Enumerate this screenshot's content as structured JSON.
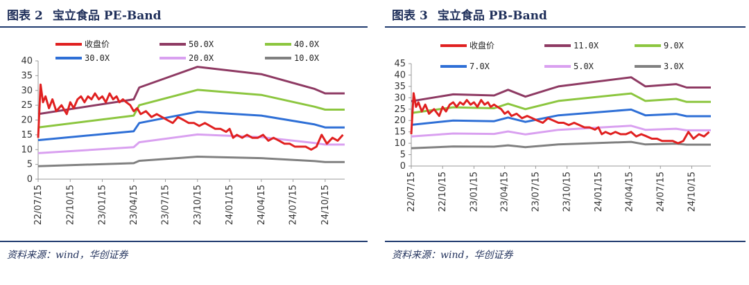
{
  "charts": [
    {
      "figure_label": "图表",
      "figure_number": "2",
      "title": "宝立食品 PE-Band",
      "source": "资料来源：wind，华创证券"
    },
    {
      "figure_label": "图表",
      "figure_number": "3",
      "title": "宝立食品 PB-Band",
      "source": "资料来源：wind，华创证券"
    }
  ],
  "chart_data": [
    {
      "type": "line",
      "title": "宝立食品 PE-Band",
      "ylim": [
        0,
        40
      ],
      "y_ticks": [
        0,
        5,
        10,
        15,
        20,
        25,
        30,
        35,
        40
      ],
      "x_ticks": [
        "22/07/15",
        "22/10/15",
        "23/01/15",
        "23/04/15",
        "23/07/15",
        "23/10/15",
        "24/01/15",
        "24/04/15",
        "24/07/15",
        "24/10/15"
      ],
      "xlim": [
        "2022-07-15",
        "2024-12-10"
      ],
      "grid": false,
      "legend": "top",
      "colors": {
        "收盘价": "#e02020",
        "50.0X": "#8e3a63",
        "40.0X": "#8cc63f",
        "30.0X": "#2e6fd6",
        "20.0X": "#d9a0f0",
        "10.0X": "#808080"
      },
      "series": [
        {
          "name": "收盘价",
          "x": [
            "2022-07-15",
            "2022-07-22",
            "2022-07-29",
            "2022-08-05",
            "2022-08-15",
            "2022-08-25",
            "2022-09-05",
            "2022-09-20",
            "2022-10-05",
            "2022-10-15",
            "2022-10-25",
            "2022-11-05",
            "2022-11-15",
            "2022-11-25",
            "2022-12-05",
            "2022-12-15",
            "2022-12-25",
            "2023-01-05",
            "2023-01-15",
            "2023-01-25",
            "2023-02-05",
            "2023-02-15",
            "2023-02-25",
            "2023-03-05",
            "2023-03-15",
            "2023-03-25",
            "2023-04-05",
            "2023-04-15",
            "2023-04-25",
            "2023-05-05",
            "2023-05-20",
            "2023-06-05",
            "2023-06-20",
            "2023-07-05",
            "2023-07-20",
            "2023-08-05",
            "2023-08-20",
            "2023-09-05",
            "2023-09-20",
            "2023-10-05",
            "2023-10-20",
            "2023-11-05",
            "2023-11-20",
            "2023-12-05",
            "2023-12-20",
            "2024-01-05",
            "2024-01-15",
            "2024-01-25",
            "2024-02-05",
            "2024-02-20",
            "2024-03-05",
            "2024-03-20",
            "2024-04-05",
            "2024-04-20",
            "2024-05-05",
            "2024-05-20",
            "2024-06-05",
            "2024-06-20",
            "2024-07-05",
            "2024-07-20",
            "2024-08-05",
            "2024-08-20",
            "2024-09-05",
            "2024-09-20",
            "2024-10-05",
            "2024-10-20",
            "2024-11-05",
            "2024-11-20",
            "2024-12-05"
          ],
          "values": [
            14,
            32,
            26,
            28,
            24,
            27,
            23,
            25,
            22,
            26,
            24,
            27,
            28,
            26,
            28,
            27,
            29,
            27,
            28,
            26,
            29,
            27,
            28,
            26,
            27,
            26,
            25,
            23,
            24,
            22,
            23,
            21,
            22,
            21,
            20,
            19,
            21,
            20,
            19,
            19,
            18,
            19,
            18,
            17,
            17,
            16,
            17,
            14,
            15,
            14,
            15,
            14,
            14,
            15,
            13,
            14,
            13,
            12,
            12,
            11,
            11,
            11,
            10,
            11,
            15,
            12,
            14,
            13,
            15
          ]
        },
        {
          "name": "50.0X",
          "x": [
            "2022-07-15",
            "2023-04-15",
            "2023-05-01",
            "2023-10-15",
            "2024-04-15",
            "2024-09-15",
            "2024-10-15",
            "2024-12-10"
          ],
          "values": [
            22,
            27,
            31,
            38,
            35.5,
            30.5,
            29,
            29
          ]
        },
        {
          "name": "40.0X",
          "x": [
            "2022-07-15",
            "2023-04-15",
            "2023-05-01",
            "2023-10-15",
            "2024-04-15",
            "2024-09-15",
            "2024-10-15",
            "2024-12-10"
          ],
          "values": [
            17.5,
            21.5,
            25,
            30.2,
            28.5,
            24.5,
            23.5,
            23.5
          ]
        },
        {
          "name": "30.0X",
          "x": [
            "2022-07-15",
            "2023-04-15",
            "2023-05-01",
            "2023-10-15",
            "2024-04-15",
            "2024-09-15",
            "2024-10-15",
            "2024-12-10"
          ],
          "values": [
            13.2,
            16.2,
            19,
            22.8,
            21.5,
            18.5,
            17.5,
            17.5
          ]
        },
        {
          "name": "20.0X",
          "x": [
            "2022-07-15",
            "2023-04-15",
            "2023-05-01",
            "2023-10-15",
            "2024-04-15",
            "2024-09-15",
            "2024-10-15",
            "2024-12-10"
          ],
          "values": [
            8.8,
            10.8,
            12.5,
            15.1,
            14.2,
            12.2,
            11.7,
            11.7
          ]
        },
        {
          "name": "10.0X",
          "x": [
            "2022-07-15",
            "2023-04-15",
            "2023-05-01",
            "2023-10-15",
            "2024-04-15",
            "2024-09-15",
            "2024-10-15",
            "2024-12-10"
          ],
          "values": [
            4.4,
            5.4,
            6.2,
            7.6,
            7.1,
            6.1,
            5.8,
            5.8
          ]
        }
      ]
    },
    {
      "type": "line",
      "title": "宝立食品 PB-Band",
      "ylim": [
        0,
        45
      ],
      "y_ticks": [
        0,
        5,
        10,
        15,
        20,
        25,
        30,
        35,
        40,
        45
      ],
      "x_ticks": [
        "22/07/15",
        "22/10/15",
        "23/01/15",
        "23/04/15",
        "23/07/15",
        "23/10/15",
        "24/01/15",
        "24/04/15",
        "24/07/15",
        "24/10/15"
      ],
      "xlim": [
        "2022-07-15",
        "2024-12-10"
      ],
      "grid": false,
      "legend": "top",
      "colors": {
        "收盘价": "#e02020",
        "11.0X": "#8e3a63",
        "9.0X": "#8cc63f",
        "7.0X": "#2e6fd6",
        "5.0X": "#d9a0f0",
        "3.0X": "#808080"
      },
      "series": [
        {
          "name": "收盘价",
          "x": [
            "2022-07-15",
            "2022-07-22",
            "2022-07-29",
            "2022-08-05",
            "2022-08-15",
            "2022-08-25",
            "2022-09-05",
            "2022-09-20",
            "2022-10-05",
            "2022-10-15",
            "2022-10-25",
            "2022-11-05",
            "2022-11-15",
            "2022-11-25",
            "2022-12-05",
            "2022-12-15",
            "2022-12-25",
            "2023-01-05",
            "2023-01-15",
            "2023-01-25",
            "2023-02-05",
            "2023-02-15",
            "2023-02-25",
            "2023-03-05",
            "2023-03-15",
            "2023-03-25",
            "2023-04-05",
            "2023-04-15",
            "2023-04-25",
            "2023-05-05",
            "2023-05-20",
            "2023-06-05",
            "2023-06-20",
            "2023-07-05",
            "2023-07-20",
            "2023-08-05",
            "2023-08-20",
            "2023-09-05",
            "2023-09-20",
            "2023-10-05",
            "2023-10-20",
            "2023-11-05",
            "2023-11-20",
            "2023-12-05",
            "2023-12-20",
            "2024-01-05",
            "2024-01-15",
            "2024-01-25",
            "2024-02-05",
            "2024-02-20",
            "2024-03-05",
            "2024-03-20",
            "2024-04-05",
            "2024-04-20",
            "2024-05-05",
            "2024-05-20",
            "2024-06-05",
            "2024-06-20",
            "2024-07-05",
            "2024-07-20",
            "2024-08-05",
            "2024-08-20",
            "2024-09-05",
            "2024-09-20",
            "2024-10-05",
            "2024-10-20",
            "2024-11-05",
            "2024-11-20",
            "2024-12-05"
          ],
          "values": [
            14,
            32,
            26,
            28,
            24,
            27,
            23,
            25,
            22,
            26,
            24,
            27,
            28,
            26,
            28,
            27,
            29,
            27,
            28,
            26,
            29,
            27,
            28,
            26,
            27,
            26,
            25,
            23,
            24,
            22,
            23,
            21,
            22,
            21,
            20,
            19,
            21,
            20,
            19,
            19,
            18,
            19,
            18,
            17,
            17,
            16,
            17,
            14,
            15,
            14,
            15,
            14,
            14,
            15,
            13,
            14,
            13,
            12,
            12,
            11,
            11,
            11,
            10,
            11,
            15,
            12,
            14,
            13,
            15
          ]
        },
        {
          "name": "11.0X",
          "x": [
            "2022-07-15",
            "2022-11-15",
            "2023-03-15",
            "2023-04-25",
            "2023-06-15",
            "2023-09-20",
            "2024-04-20",
            "2024-06-01",
            "2024-08-30",
            "2024-09-30",
            "2024-12-10"
          ],
          "values": [
            28.5,
            31.5,
            31,
            33.5,
            30.5,
            35,
            39,
            35,
            36,
            34.5,
            34.5
          ]
        },
        {
          "name": "9.0X",
          "x": [
            "2022-07-15",
            "2022-11-15",
            "2023-03-15",
            "2023-04-25",
            "2023-06-15",
            "2023-09-20",
            "2024-04-20",
            "2024-06-01",
            "2024-08-30",
            "2024-09-30",
            "2024-12-10"
          ],
          "values": [
            23.3,
            25.8,
            25.4,
            27.4,
            25,
            28.6,
            31.9,
            28.6,
            29.5,
            28.2,
            28.2
          ]
        },
        {
          "name": "7.0X",
          "x": [
            "2022-07-15",
            "2022-11-15",
            "2023-03-15",
            "2023-04-25",
            "2023-06-15",
            "2023-09-20",
            "2024-04-20",
            "2024-06-01",
            "2024-08-30",
            "2024-09-30",
            "2024-12-10"
          ],
          "values": [
            18.1,
            20,
            19.7,
            21.3,
            19.4,
            22.3,
            24.8,
            22.3,
            22.9,
            21.9,
            21.9
          ]
        },
        {
          "name": "5.0X",
          "x": [
            "2022-07-15",
            "2022-11-15",
            "2023-03-15",
            "2023-04-25",
            "2023-06-15",
            "2023-09-20",
            "2024-04-20",
            "2024-06-01",
            "2024-08-30",
            "2024-09-30",
            "2024-12-10"
          ],
          "values": [
            13,
            14.3,
            14.1,
            15.2,
            13.9,
            15.9,
            17.7,
            15.9,
            16.4,
            15.7,
            15.7
          ]
        },
        {
          "name": "3.0X",
          "x": [
            "2022-07-15",
            "2022-11-15",
            "2023-03-15",
            "2023-04-25",
            "2023-06-15",
            "2023-09-20",
            "2024-04-20",
            "2024-06-01",
            "2024-08-30",
            "2024-09-30",
            "2024-12-10"
          ],
          "values": [
            7.8,
            8.6,
            8.5,
            9.1,
            8.3,
            9.5,
            10.6,
            9.5,
            9.8,
            9.4,
            9.4
          ]
        }
      ]
    }
  ]
}
